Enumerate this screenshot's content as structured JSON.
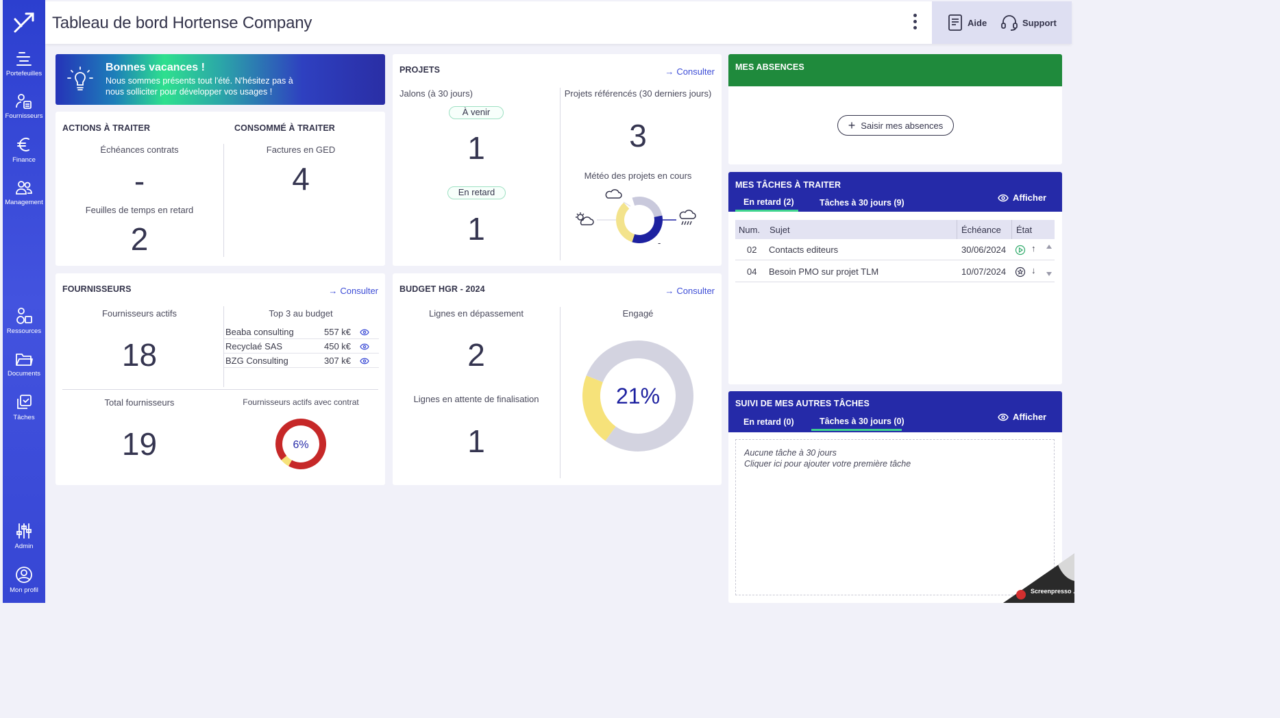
{
  "topbar": {
    "title": "Tableau de bord Hortense Company",
    "help_label": "Aide",
    "support_label": "Support"
  },
  "sidebar": {
    "items": [
      {
        "label": "Portefeuilles",
        "icon": "portfolio-icon"
      },
      {
        "label": "Fournisseurs",
        "icon": "suppliers-icon"
      },
      {
        "label": "Finance",
        "icon": "euro-icon"
      },
      {
        "label": "Management",
        "icon": "people-icon"
      },
      {
        "label": "Ressources",
        "icon": "shapes-icon"
      },
      {
        "label": "Documents",
        "icon": "folder-icon"
      },
      {
        "label": "Tâches",
        "icon": "tasks-icon"
      },
      {
        "label": "Admin",
        "icon": "sliders-icon"
      },
      {
        "label": "Mon profil",
        "icon": "user-circle-icon"
      }
    ]
  },
  "banner": {
    "title": "Bonnes vacances !",
    "text": "Nous sommes présents tout l'été. N'hésitez pas à nous solliciter pour développer vos usages !",
    "icon": "lightbulb-icon"
  },
  "actions": {
    "title": "ACTIONS À TRAITER",
    "contracts_label": "Échéances contrats",
    "contracts_value": "-",
    "timesheets_label": "Feuilles de temps en retard",
    "timesheets_value": "2"
  },
  "consumed": {
    "title": "CONSOMMÉ À TRAITER",
    "invoices_label": "Factures en GED",
    "invoices_value": "4"
  },
  "projects": {
    "title": "PROJETS",
    "consult_label": "Consulter",
    "milestones_label": "Jalons (à 30 jours)",
    "upcoming_label": "À venir",
    "upcoming_value": "1",
    "late_label": "En retard",
    "late_value": "1",
    "referenced_label": "Projets référencés (30 derniers jours)",
    "referenced_value": "3",
    "weather_label": "Météo des projets en cours",
    "weather_dash": "-",
    "weather_segments": [
      {
        "name": "cloudy",
        "value": 1,
        "color": "#c9c9dc"
      },
      {
        "name": "rainy",
        "value": 1,
        "color": "#1d21a0"
      },
      {
        "name": "sunny",
        "value": 1,
        "color": "#f3e38c"
      }
    ]
  },
  "absences": {
    "title": "MES ABSENCES",
    "button_label": "Saisir mes absences"
  },
  "tasks": {
    "title": "MES TÂCHES À TRAITER",
    "tab_late": "En retard (2)",
    "tab_30days": "Tâches à 30 jours (9)",
    "show_label": "Afficher",
    "columns": {
      "num": "Num.",
      "subject": "Sujet",
      "due": "Échéance",
      "state": "État"
    },
    "rows": [
      {
        "num": "02",
        "subject": "Contacts editeurs",
        "due": "30/06/2024"
      },
      {
        "num": "04",
        "subject": "Besoin PMO sur projet TLM",
        "due": "10/07/2024"
      }
    ]
  },
  "suppliers": {
    "title": "FOURNISSEURS",
    "consult_label": "Consulter",
    "active_label": "Fournisseurs actifs",
    "active_value": "18",
    "top3_label": "Top 3 au budget",
    "top3": [
      {
        "name": "Beaba consulting",
        "value": "557 k€"
      },
      {
        "name": "Recyclaé SAS",
        "value": "450 k€"
      },
      {
        "name": "BZG Consulting",
        "value": "307 k€"
      }
    ],
    "total_label": "Total fournisseurs",
    "total_value": "19",
    "contract_label": "Fournisseurs actifs avec contrat",
    "contract_percent_label": "6%",
    "contract_fraction": 0.06
  },
  "budget": {
    "title": "BUDGET HGR - 2024",
    "consult_label": "Consulter",
    "overrun_label": "Lignes en dépassement",
    "overrun_value": "2",
    "pending_label": "Lignes en attente de finalisation",
    "pending_value": "1",
    "engaged_label": "Engagé",
    "engaged_percent_label": "21%",
    "engaged_fraction": 0.21
  },
  "other_tasks": {
    "title": "SUIVI DE MES AUTRES TÂCHES",
    "tab_late": "En retard (0)",
    "tab_30days": "Tâches à 30 jours (0)",
    "show_label": "Afficher",
    "empty_line1": "Aucune tâche à 30 jours",
    "empty_line2": "Cliquer ici pour ajouter votre première tâche"
  },
  "colors": {
    "sidebar": "#3646d4",
    "accent_blue": "#252aa8",
    "accent_green": "#1f8a3c",
    "tab_underline": "#3fd48e",
    "donut_red": "#c62828",
    "donut_yellow": "#f6e27a",
    "donut_grey": "#d3d3e0"
  },
  "watermark": "Screenpresso .com"
}
